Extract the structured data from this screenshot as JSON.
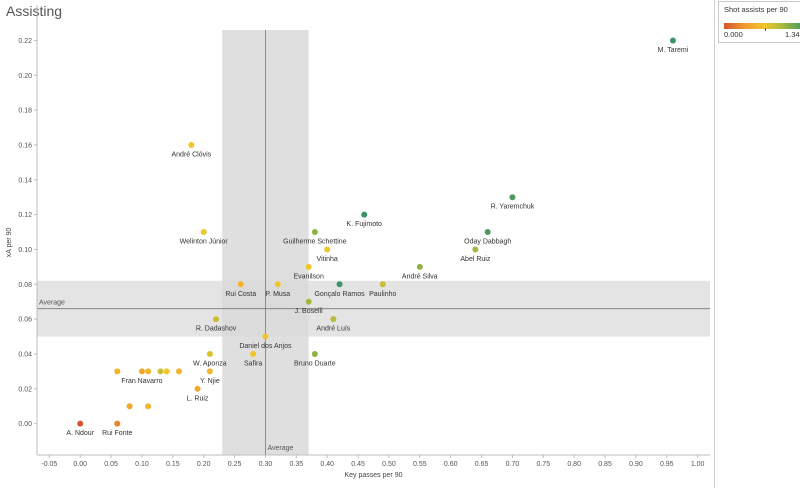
{
  "title": "Assisting",
  "legend": {
    "title": "Shot assists per 90",
    "min_label": "0.000",
    "max_label": "1.340",
    "min": 0.0,
    "max": 1.34,
    "colors": [
      "#d4572f",
      "#ef9a2a",
      "#f0c52a",
      "#a3b83c",
      "#3a9568"
    ]
  },
  "chart_data": {
    "type": "scatter",
    "title": "Assisting",
    "xlabel": "Key passes per 90",
    "ylabel": "xA per 90",
    "xlim": [
      -0.07,
      1.02
    ],
    "ylim": [
      -0.018,
      0.226
    ],
    "x_ticks": [
      "-0.05",
      "0.00",
      "0.05",
      "0.10",
      "0.15",
      "0.20",
      "0.25",
      "0.30",
      "0.35",
      "0.40",
      "0.45",
      "0.50",
      "0.55",
      "0.60",
      "0.65",
      "0.70",
      "0.75",
      "0.80",
      "0.85",
      "0.90",
      "0.95",
      "1.00"
    ],
    "x_tick_values": [
      -0.05,
      0.0,
      0.05,
      0.1,
      0.15,
      0.2,
      0.25,
      0.3,
      0.35,
      0.4,
      0.45,
      0.5,
      0.55,
      0.6,
      0.65,
      0.7,
      0.75,
      0.8,
      0.85,
      0.9,
      0.95,
      1.0
    ],
    "y_ticks": [
      "0.00",
      "0.02",
      "0.04",
      "0.06",
      "0.08",
      "0.10",
      "0.12",
      "0.14",
      "0.16",
      "0.18",
      "0.20",
      "0.22"
    ],
    "y_tick_values": [
      0.0,
      0.02,
      0.04,
      0.06,
      0.08,
      0.1,
      0.12,
      0.14,
      0.16,
      0.18,
      0.2,
      0.22
    ],
    "reference_lines": {
      "x_average": 0.3,
      "x_label": "Average",
      "x_band": [
        0.23,
        0.37
      ],
      "y_average": 0.066,
      "y_label": "Average",
      "y_band": [
        0.05,
        0.082
      ]
    },
    "points": [
      {
        "x": 0.96,
        "y": 0.22,
        "shot_assists": 1.3,
        "color": "#3a9568",
        "label": "M. Taremi"
      },
      {
        "x": 0.18,
        "y": 0.16,
        "shot_assists": 0.65,
        "color": "#f0c52a",
        "label": "André Clóvis"
      },
      {
        "x": 0.7,
        "y": 0.13,
        "shot_assists": 1.15,
        "color": "#4f9a5a",
        "label": "R. Yaremchuk"
      },
      {
        "x": 0.46,
        "y": 0.12,
        "shot_assists": 1.25,
        "color": "#3a9568",
        "label": "K. Fujimoto"
      },
      {
        "x": 0.2,
        "y": 0.11,
        "shot_assists": 0.65,
        "color": "#f0c52a",
        "label": "Welinton Júnior"
      },
      {
        "x": 0.38,
        "y": 0.11,
        "shot_assists": 0.95,
        "color": "#8db341",
        "label": "Guilherme Schettine"
      },
      {
        "x": 0.66,
        "y": 0.11,
        "shot_assists": 1.15,
        "color": "#4f9a5a",
        "label": "Oday Dabbagh"
      },
      {
        "x": 0.4,
        "y": 0.1,
        "shot_assists": 0.65,
        "color": "#f0c52a",
        "label": "Vitinha"
      },
      {
        "x": 0.64,
        "y": 0.1,
        "shot_assists": 0.9,
        "color": "#a3b83c",
        "label": "Abel Ruiz"
      },
      {
        "x": 0.37,
        "y": 0.09,
        "shot_assists": 0.65,
        "color": "#f0c52a",
        "label": "Evanilson"
      },
      {
        "x": 0.55,
        "y": 0.09,
        "shot_assists": 0.95,
        "color": "#8db341",
        "label": "André Silva"
      },
      {
        "x": 0.26,
        "y": 0.08,
        "shot_assists": 0.55,
        "color": "#f2b52a",
        "label": "Rui Costa"
      },
      {
        "x": 0.32,
        "y": 0.08,
        "shot_assists": 0.65,
        "color": "#f0c52a",
        "label": "P. Musa"
      },
      {
        "x": 0.42,
        "y": 0.08,
        "shot_assists": 1.2,
        "color": "#3a9568",
        "label": "Gonçalo Ramos"
      },
      {
        "x": 0.49,
        "y": 0.08,
        "shot_assists": 0.75,
        "color": "#c7bf34",
        "label": "Paulinho"
      },
      {
        "x": 0.37,
        "y": 0.07,
        "shot_assists": 0.85,
        "color": "#a3b83c",
        "label": "J. Boselli"
      },
      {
        "x": 0.22,
        "y": 0.06,
        "shot_assists": 0.72,
        "color": "#c7bf34",
        "label": "R. Dadashov"
      },
      {
        "x": 0.41,
        "y": 0.06,
        "shot_assists": 0.8,
        "color": "#b5ba38",
        "label": "André Luís"
      },
      {
        "x": 0.3,
        "y": 0.05,
        "shot_assists": 0.65,
        "color": "#f0c52a",
        "label": "Daniel dos Anjos"
      },
      {
        "x": 0.21,
        "y": 0.04,
        "shot_assists": 0.7,
        "color": "#d8c22e",
        "label": "W. Aponza"
      },
      {
        "x": 0.28,
        "y": 0.04,
        "shot_assists": 0.65,
        "color": "#f0c52a",
        "label": "Safira"
      },
      {
        "x": 0.38,
        "y": 0.04,
        "shot_assists": 0.95,
        "color": "#8db341",
        "label": "Bruno Duarte"
      },
      {
        "x": 0.06,
        "y": 0.03,
        "shot_assists": 0.55,
        "color": "#f2b52a",
        "label": ""
      },
      {
        "x": 0.1,
        "y": 0.03,
        "shot_assists": 0.5,
        "color": "#f1a82a",
        "label": "Fran Navarro"
      },
      {
        "x": 0.11,
        "y": 0.03,
        "shot_assists": 0.55,
        "color": "#f2b52a",
        "label": ""
      },
      {
        "x": 0.13,
        "y": 0.03,
        "shot_assists": 0.72,
        "color": "#c7bf34",
        "label": ""
      },
      {
        "x": 0.14,
        "y": 0.03,
        "shot_assists": 0.65,
        "color": "#f0c52a",
        "label": ""
      },
      {
        "x": 0.16,
        "y": 0.03,
        "shot_assists": 0.55,
        "color": "#f2b52a",
        "label": ""
      },
      {
        "x": 0.21,
        "y": 0.03,
        "shot_assists": 0.55,
        "color": "#f2b52a",
        "label": "Y. Njie"
      },
      {
        "x": 0.19,
        "y": 0.02,
        "shot_assists": 0.5,
        "color": "#f1a82a",
        "label": "L. Ruiz"
      },
      {
        "x": 0.08,
        "y": 0.01,
        "shot_assists": 0.5,
        "color": "#f1a82a",
        "label": ""
      },
      {
        "x": 0.11,
        "y": 0.01,
        "shot_assists": 0.55,
        "color": "#f2b52a",
        "label": ""
      },
      {
        "x": 0.0,
        "y": 0.0,
        "shot_assists": 0.1,
        "color": "#d4572f",
        "label": "A. Ndour"
      },
      {
        "x": 0.06,
        "y": 0.0,
        "shot_assists": 0.3,
        "color": "#e8862b",
        "label": "Rui Fonte"
      }
    ]
  }
}
